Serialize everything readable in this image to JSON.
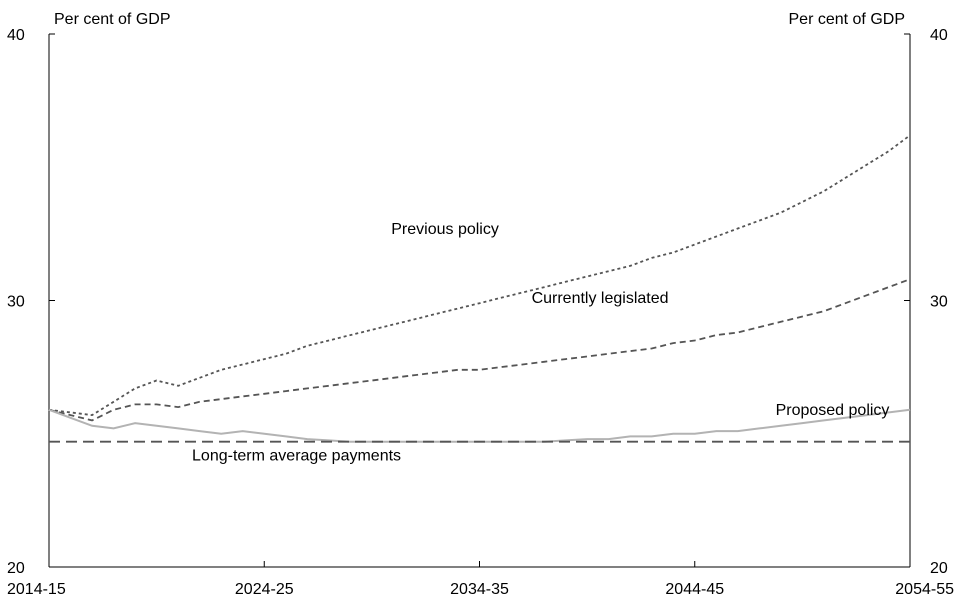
{
  "chart_data": {
    "type": "line",
    "title": "",
    "y_unit_left": "Per cent of GDP",
    "y_unit_right": "Per cent of GDP",
    "ylim": [
      20,
      40
    ],
    "yticks": [
      20,
      30,
      40
    ],
    "xlim": [
      2014,
      2054
    ],
    "xticks": [
      {
        "x": 2014,
        "label": "2014-15"
      },
      {
        "x": 2024,
        "label": "2024-25"
      },
      {
        "x": 2034,
        "label": "2034-35"
      },
      {
        "x": 2044,
        "label": "2044-45"
      },
      {
        "x": 2054,
        "label": "2054-55"
      }
    ],
    "grid": false,
    "series": [
      {
        "name": "Previous policy",
        "style": "dotted",
        "color": "#555555",
        "x": [
          2014,
          2015,
          2016,
          2017,
          2018,
          2019,
          2020,
          2021,
          2022,
          2023,
          2024,
          2025,
          2026,
          2027,
          2028,
          2029,
          2030,
          2031,
          2032,
          2033,
          2034,
          2035,
          2036,
          2037,
          2038,
          2039,
          2040,
          2041,
          2042,
          2043,
          2044,
          2045,
          2046,
          2047,
          2048,
          2049,
          2050,
          2051,
          2052,
          2053,
          2054
        ],
        "values": [
          25.9,
          25.8,
          25.7,
          26.2,
          26.7,
          27.0,
          26.8,
          27.1,
          27.4,
          27.6,
          27.8,
          28.0,
          28.3,
          28.5,
          28.7,
          28.9,
          29.1,
          29.3,
          29.5,
          29.7,
          29.9,
          30.1,
          30.3,
          30.5,
          30.7,
          30.9,
          31.1,
          31.3,
          31.6,
          31.8,
          32.1,
          32.4,
          32.7,
          33.0,
          33.3,
          33.7,
          34.1,
          34.6,
          35.1,
          35.6,
          36.2
        ]
      },
      {
        "name": "Currently legislated",
        "style": "dashed",
        "color": "#555555",
        "x": [
          2014,
          2015,
          2016,
          2017,
          2018,
          2019,
          2020,
          2021,
          2022,
          2023,
          2024,
          2025,
          2026,
          2027,
          2028,
          2029,
          2030,
          2031,
          2032,
          2033,
          2034,
          2035,
          2036,
          2037,
          2038,
          2039,
          2040,
          2041,
          2042,
          2043,
          2044,
          2045,
          2046,
          2047,
          2048,
          2049,
          2050,
          2051,
          2052,
          2053,
          2054
        ],
        "values": [
          25.9,
          25.7,
          25.5,
          25.9,
          26.1,
          26.1,
          26.0,
          26.2,
          26.3,
          26.4,
          26.5,
          26.6,
          26.7,
          26.8,
          26.9,
          27.0,
          27.1,
          27.2,
          27.3,
          27.4,
          27.4,
          27.5,
          27.6,
          27.7,
          27.8,
          27.9,
          28.0,
          28.1,
          28.2,
          28.4,
          28.5,
          28.7,
          28.8,
          29.0,
          29.2,
          29.4,
          29.6,
          29.9,
          30.2,
          30.5,
          30.8
        ]
      },
      {
        "name": "Proposed policy",
        "style": "solid",
        "color": "#b3b3b3",
        "x": [
          2014,
          2015,
          2016,
          2017,
          2018,
          2019,
          2020,
          2021,
          2022,
          2023,
          2024,
          2025,
          2026,
          2027,
          2028,
          2029,
          2030,
          2031,
          2032,
          2033,
          2034,
          2035,
          2036,
          2037,
          2038,
          2039,
          2040,
          2041,
          2042,
          2043,
          2044,
          2045,
          2046,
          2047,
          2048,
          2049,
          2050,
          2051,
          2052,
          2053,
          2054
        ],
        "values": [
          25.9,
          25.6,
          25.3,
          25.2,
          25.4,
          25.3,
          25.2,
          25.1,
          25.0,
          25.1,
          25.0,
          24.9,
          24.8,
          24.75,
          24.7,
          24.7,
          24.7,
          24.7,
          24.7,
          24.7,
          24.7,
          24.7,
          24.7,
          24.7,
          24.75,
          24.8,
          24.8,
          24.9,
          24.9,
          25.0,
          25.0,
          25.1,
          25.1,
          25.2,
          25.3,
          25.4,
          25.5,
          25.6,
          25.7,
          25.8,
          25.9
        ]
      },
      {
        "name": "Long-term average payments",
        "style": "longdash",
        "color": "#555555",
        "x": [
          2014,
          2054
        ],
        "values": [
          24.7,
          24.7
        ]
      }
    ],
    "annotations": [
      {
        "text": "Previous policy",
        "x": 2032.4,
        "y": 32.5
      },
      {
        "text": "Currently legislated",
        "x": 2039.6,
        "y": 29.9
      },
      {
        "text": "Proposed policy",
        "x": 2050.4,
        "y": 25.7
      },
      {
        "text": "Long-term average payments",
        "x": 2025.5,
        "y": 24.0
      }
    ]
  }
}
